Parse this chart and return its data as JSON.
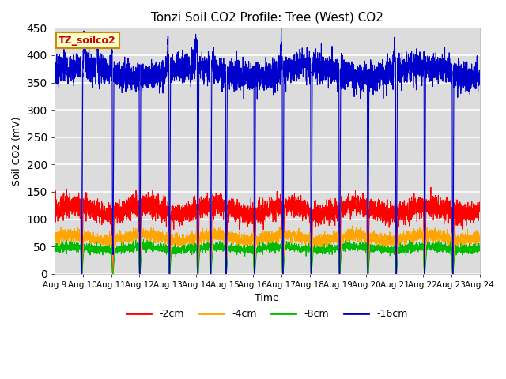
{
  "title": "Tonzi Soil CO2 Profile: Tree (West) CO2",
  "ylabel": "Soil CO2 (mV)",
  "xlabel": "Time",
  "legend_label": "TZ_soilco2",
  "series_labels": [
    "-2cm",
    "-4cm",
    "-8cm",
    "-16cm"
  ],
  "series_colors": [
    "#ff0000",
    "#ffa500",
    "#00bb00",
    "#0000cc"
  ],
  "ylim": [
    0,
    450
  ],
  "background_color": "#ffffff",
  "plot_bg_color": "#dcdcdc",
  "grid_color": "#ffffff",
  "days": 15,
  "n_points": 4320,
  "blue_base": 370,
  "blue_noise": 12,
  "red_base": 118,
  "red_noise": 10,
  "orange_base": 66,
  "orange_noise": 6,
  "green_base": 47,
  "green_noise": 4,
  "drop_days": [
    0.95,
    2.05,
    3.0,
    4.05,
    5.05,
    5.5,
    6.05,
    7.05,
    8.05,
    9.05,
    10.05,
    11.05,
    12.05,
    13.05,
    14.05
  ],
  "tick_labels": [
    "Aug 9",
    "Aug 10",
    "Aug 11",
    "Aug 12",
    "Aug 13",
    "Aug 14",
    "Aug 15",
    "Aug 16",
    "Aug 17",
    "Aug 18",
    "Aug 19",
    "Aug 20",
    "Aug 21",
    "Aug 22",
    "Aug 23",
    "Aug 24"
  ],
  "tick_positions": [
    0,
    1,
    2,
    3,
    4,
    5,
    6,
    7,
    8,
    9,
    10,
    11,
    12,
    13,
    14,
    15
  ]
}
